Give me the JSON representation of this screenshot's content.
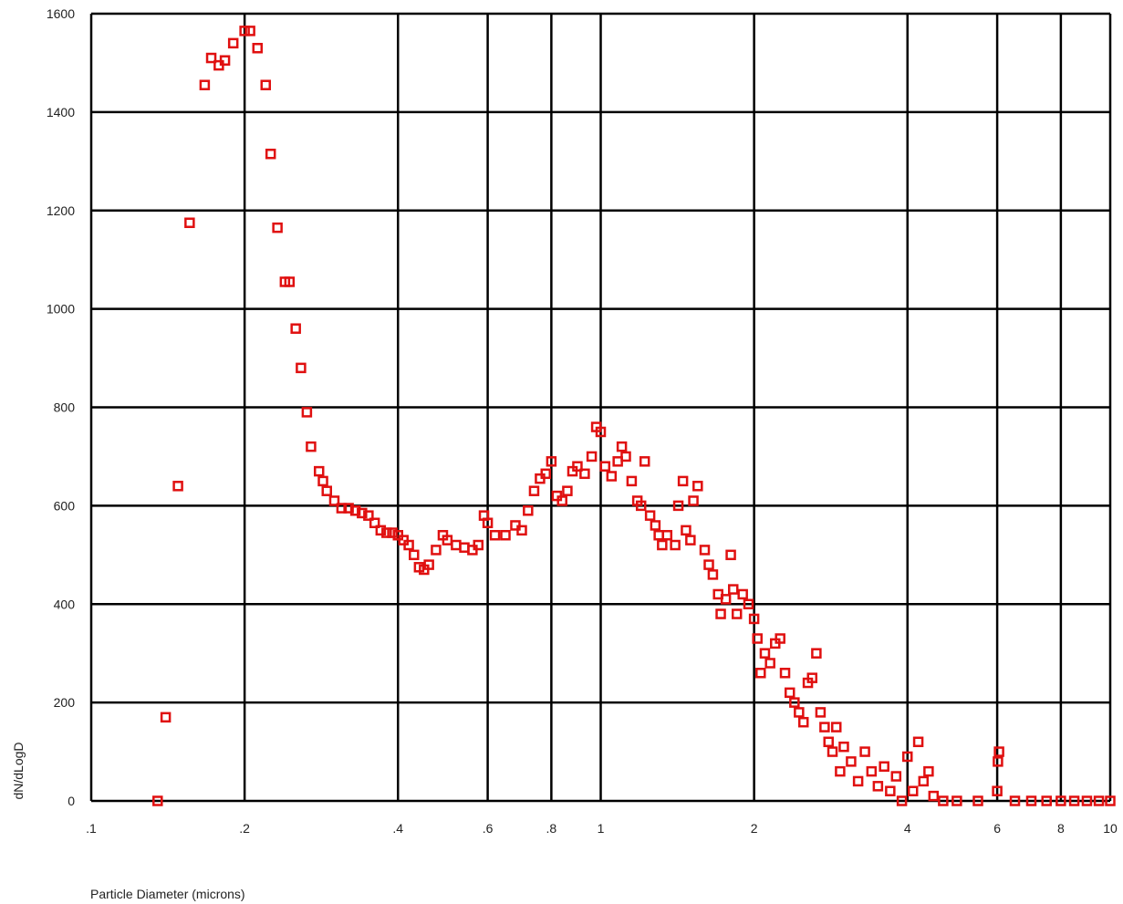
{
  "chart_data": {
    "type": "scatter",
    "title": "",
    "xlabel": "Particle Diameter (microns)",
    "ylabel": "dN/dLogD",
    "x_scale": "log",
    "xlim": [
      0.1,
      10
    ],
    "ylim": [
      0,
      1600
    ],
    "x_ticks": [
      {
        "value": 0.1,
        "label": ".1"
      },
      {
        "value": 0.2,
        "label": ".2"
      },
      {
        "value": 0.4,
        "label": ".4"
      },
      {
        "value": 0.6,
        "label": ".6"
      },
      {
        "value": 0.8,
        "label": ".8"
      },
      {
        "value": 1,
        "label": "1"
      },
      {
        "value": 2,
        "label": "2"
      },
      {
        "value": 4,
        "label": "4"
      },
      {
        "value": 6,
        "label": "6"
      },
      {
        "value": 8,
        "label": "8"
      },
      {
        "value": 10,
        "label": "10"
      }
    ],
    "y_ticks": [
      {
        "value": 0,
        "label": "0"
      },
      {
        "value": 200,
        "label": "200"
      },
      {
        "value": 400,
        "label": "400"
      },
      {
        "value": 600,
        "label": "600"
      },
      {
        "value": 800,
        "label": "800"
      },
      {
        "value": 1000,
        "label": "1000"
      },
      {
        "value": 1200,
        "label": "1200"
      },
      {
        "value": 1400,
        "label": "1400"
      },
      {
        "value": 1600,
        "label": "1600"
      }
    ],
    "grid": true,
    "marker": "hollow-square",
    "marker_color": "#e01010",
    "series": [
      {
        "points": [
          [
            0.135,
            0
          ],
          [
            0.14,
            170
          ],
          [
            0.148,
            640
          ],
          [
            0.156,
            1175
          ],
          [
            0.167,
            1455
          ],
          [
            0.172,
            1510
          ],
          [
            0.178,
            1495
          ],
          [
            0.183,
            1505
          ],
          [
            0.19,
            1540
          ],
          [
            0.2,
            1565
          ],
          [
            0.205,
            1565
          ],
          [
            0.212,
            1530
          ],
          [
            0.22,
            1455
          ],
          [
            0.225,
            1315
          ],
          [
            0.232,
            1165
          ],
          [
            0.24,
            1055
          ],
          [
            0.245,
            1055
          ],
          [
            0.252,
            960
          ],
          [
            0.258,
            880
          ],
          [
            0.265,
            790
          ],
          [
            0.27,
            720
          ],
          [
            0.28,
            670
          ],
          [
            0.285,
            650
          ],
          [
            0.29,
            630
          ],
          [
            0.3,
            610
          ],
          [
            0.31,
            595
          ],
          [
            0.32,
            595
          ],
          [
            0.33,
            590
          ],
          [
            0.34,
            585
          ],
          [
            0.35,
            580
          ],
          [
            0.36,
            565
          ],
          [
            0.37,
            550
          ],
          [
            0.38,
            545
          ],
          [
            0.39,
            545
          ],
          [
            0.4,
            540
          ],
          [
            0.41,
            530
          ],
          [
            0.42,
            520
          ],
          [
            0.43,
            500
          ],
          [
            0.44,
            475
          ],
          [
            0.45,
            470
          ],
          [
            0.46,
            480
          ],
          [
            0.475,
            510
          ],
          [
            0.49,
            540
          ],
          [
            0.5,
            530
          ],
          [
            0.52,
            520
          ],
          [
            0.54,
            515
          ],
          [
            0.56,
            510
          ],
          [
            0.575,
            520
          ],
          [
            0.59,
            580
          ],
          [
            0.6,
            565
          ],
          [
            0.62,
            540
          ],
          [
            0.65,
            540
          ],
          [
            0.68,
            560
          ],
          [
            0.7,
            550
          ],
          [
            0.72,
            590
          ],
          [
            0.74,
            630
          ],
          [
            0.76,
            655
          ],
          [
            0.78,
            665
          ],
          [
            0.8,
            690
          ],
          [
            0.82,
            620
          ],
          [
            0.84,
            610
          ],
          [
            0.86,
            630
          ],
          [
            0.88,
            670
          ],
          [
            0.9,
            680
          ],
          [
            0.93,
            665
          ],
          [
            0.96,
            700
          ],
          [
            0.98,
            760
          ],
          [
            1.0,
            750
          ],
          [
            1.02,
            680
          ],
          [
            1.05,
            660
          ],
          [
            1.08,
            690
          ],
          [
            1.1,
            720
          ],
          [
            1.12,
            700
          ],
          [
            1.15,
            650
          ],
          [
            1.18,
            610
          ],
          [
            1.2,
            600
          ],
          [
            1.22,
            690
          ],
          [
            1.25,
            580
          ],
          [
            1.28,
            560
          ],
          [
            1.3,
            540
          ],
          [
            1.32,
            520
          ],
          [
            1.35,
            540
          ],
          [
            1.4,
            520
          ],
          [
            1.42,
            600
          ],
          [
            1.45,
            650
          ],
          [
            1.47,
            550
          ],
          [
            1.5,
            530
          ],
          [
            1.52,
            610
          ],
          [
            1.55,
            640
          ],
          [
            1.6,
            510
          ],
          [
            1.63,
            480
          ],
          [
            1.66,
            460
          ],
          [
            1.7,
            420
          ],
          [
            1.72,
            380
          ],
          [
            1.76,
            410
          ],
          [
            1.8,
            500
          ],
          [
            1.82,
            430
          ],
          [
            1.85,
            380
          ],
          [
            1.9,
            420
          ],
          [
            1.95,
            400
          ],
          [
            2.0,
            370
          ],
          [
            2.03,
            330
          ],
          [
            2.06,
            260
          ],
          [
            2.1,
            300
          ],
          [
            2.15,
            280
          ],
          [
            2.2,
            320
          ],
          [
            2.25,
            330
          ],
          [
            2.3,
            260
          ],
          [
            2.35,
            220
          ],
          [
            2.4,
            200
          ],
          [
            2.45,
            180
          ],
          [
            2.5,
            160
          ],
          [
            2.55,
            240
          ],
          [
            2.6,
            250
          ],
          [
            2.65,
            300
          ],
          [
            2.7,
            180
          ],
          [
            2.75,
            150
          ],
          [
            2.8,
            120
          ],
          [
            2.85,
            100
          ],
          [
            2.9,
            150
          ],
          [
            2.95,
            60
          ],
          [
            3.0,
            110
          ],
          [
            3.1,
            80
          ],
          [
            3.2,
            40
          ],
          [
            3.3,
            100
          ],
          [
            3.4,
            60
          ],
          [
            3.5,
            30
          ],
          [
            3.6,
            70
          ],
          [
            3.7,
            20
          ],
          [
            3.8,
            50
          ],
          [
            3.9,
            0
          ],
          [
            4.0,
            90
          ],
          [
            4.1,
            20
          ],
          [
            4.2,
            120
          ],
          [
            4.3,
            40
          ],
          [
            4.4,
            60
          ],
          [
            4.5,
            10
          ],
          [
            4.7,
            0
          ],
          [
            5.0,
            0
          ],
          [
            5.5,
            0
          ],
          [
            6.0,
            20
          ],
          [
            6.02,
            80
          ],
          [
            6.05,
            100
          ],
          [
            6.5,
            0
          ],
          [
            7.0,
            0
          ],
          [
            7.5,
            0
          ],
          [
            8.0,
            0
          ],
          [
            8.5,
            0
          ],
          [
            9.0,
            0
          ],
          [
            9.5,
            0
          ],
          [
            10.0,
            0
          ]
        ]
      }
    ]
  }
}
